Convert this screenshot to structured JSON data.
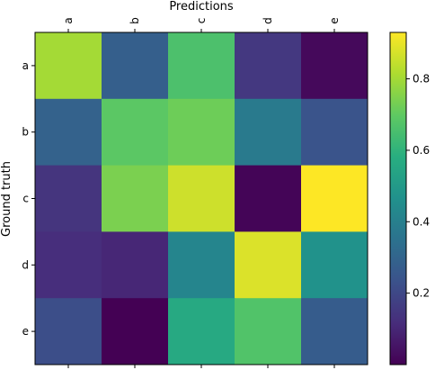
{
  "chart_data": {
    "type": "heatmap",
    "colormap": "viridis",
    "xlabel": "Predictions",
    "ylabel": "Ground truth",
    "x_categories": [
      "a",
      "b",
      "c",
      "d",
      "e"
    ],
    "y_categories": [
      "a",
      "b",
      "c",
      "d",
      "e"
    ],
    "values": [
      [
        0.8,
        0.28,
        0.66,
        0.15,
        0.02
      ],
      [
        0.29,
        0.69,
        0.72,
        0.38,
        0.24
      ],
      [
        0.14,
        0.74,
        0.86,
        0.01,
        0.93
      ],
      [
        0.12,
        0.1,
        0.42,
        0.88,
        0.47
      ],
      [
        0.22,
        0.0,
        0.56,
        0.67,
        0.27
      ]
    ],
    "colorbar": {
      "range": [
        0.0,
        0.93
      ],
      "ticks": [
        0.2,
        0.4,
        0.6,
        0.8
      ],
      "tick_labels": [
        "0.2",
        "0.4",
        "0.6",
        "0.8"
      ]
    },
    "x_tick_position": "top",
    "grid": false,
    "legend": "colorbar-right"
  }
}
